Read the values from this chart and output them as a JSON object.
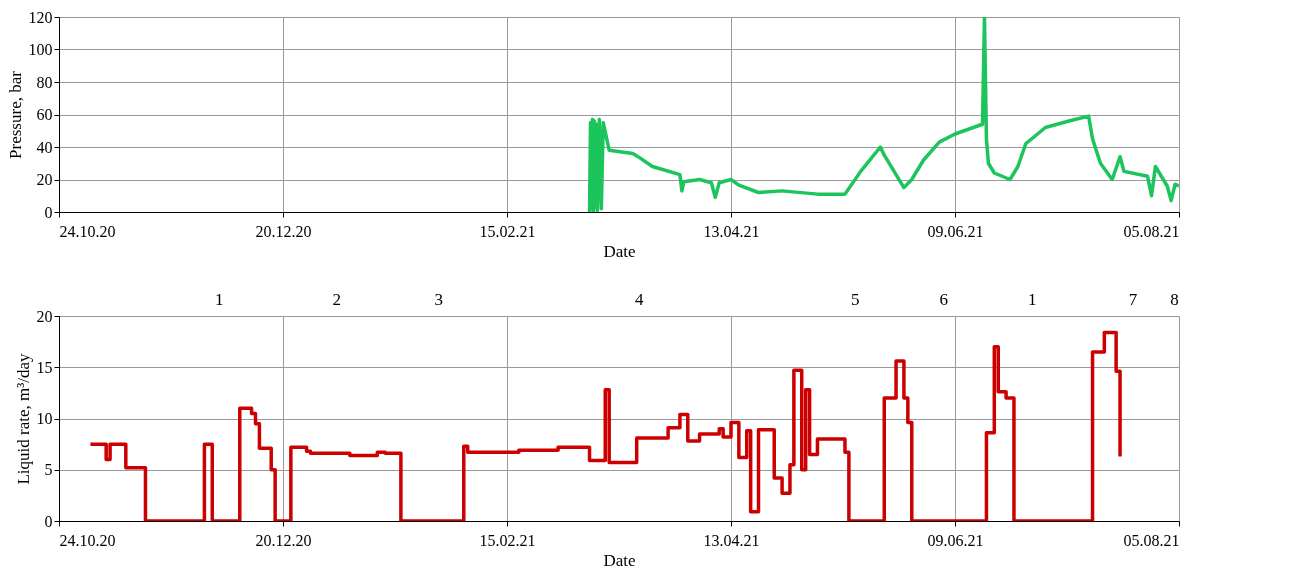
{
  "chart_data": [
    {
      "type": "line",
      "xlabel": "Date",
      "ylabel": "Pressure, bar",
      "xlim": [
        "2020-10-24",
        "2021-08-05"
      ],
      "xticks": [
        {
          "value": "2020-10-24",
          "label": "24.10.20"
        },
        {
          "value": "2020-12-20",
          "label": "20.12.20"
        },
        {
          "value": "2021-02-15",
          "label": "15.02.21"
        },
        {
          "value": "2021-04-13",
          "label": "13.04.21"
        },
        {
          "value": "2021-06-09",
          "label": "09.06.21"
        },
        {
          "value": "2021-08-05",
          "label": "05.08.21"
        }
      ],
      "ylim": [
        0,
        120
      ],
      "yticks": [
        0,
        20,
        40,
        60,
        80,
        100,
        120
      ],
      "grid": true,
      "series": [
        {
          "color": "#1cc45c",
          "x": [
            "2021-03-08T00:00",
            "2021-03-08T06:00",
            "2021-03-08T12:00",
            "2021-03-08T18:00",
            "2021-03-09T00:00",
            "2021-03-09T06:00",
            "2021-03-09T12:00",
            "2021-03-09T18:00",
            "2021-03-10T00:00",
            "2021-03-10T12:00",
            "2021-03-11T00:00",
            "2021-03-11T12:00",
            "2021-03-13",
            "2021-03-19",
            "2021-03-21",
            "2021-03-24",
            "2021-03-31",
            "2021-03-31T12:00",
            "2021-04-01",
            "2021-04-05",
            "2021-04-08",
            "2021-04-09",
            "2021-04-10",
            "2021-04-13",
            "2021-04-15",
            "2021-04-20",
            "2021-04-26",
            "2021-05-05",
            "2021-05-12",
            "2021-05-16",
            "2021-05-21",
            "2021-05-22",
            "2021-05-27",
            "2021-05-29",
            "2021-06-01",
            "2021-06-05",
            "2021-06-09",
            "2021-06-16",
            "2021-06-16T12:00",
            "2021-06-17",
            "2021-06-17T12:00",
            "2021-06-19",
            "2021-06-23",
            "2021-06-25",
            "2021-06-27",
            "2021-07-02",
            "2021-07-08",
            "2021-07-13",
            "2021-07-14",
            "2021-07-16",
            "2021-07-19",
            "2021-07-21",
            "2021-07-22",
            "2021-07-28",
            "2021-07-29",
            "2021-07-30",
            "2021-08-02",
            "2021-08-03",
            "2021-08-04",
            "2021-08-05"
          ],
          "values": [
            0,
            55,
            2,
            57,
            0,
            56,
            3,
            54,
            1,
            57,
            2,
            55,
            38,
            36,
            33,
            28,
            23,
            13,
            18.6,
            20,
            18,
            9,
            18,
            20,
            16.5,
            12,
            13,
            11,
            11,
            25,
            40,
            35,
            15,
            20,
            32,
            43,
            48,
            54,
            120,
            45,
            30,
            24,
            20,
            28,
            42,
            52,
            56,
            59,
            45,
            30,
            20,
            34,
            25,
            22,
            10,
            28,
            16,
            7,
            17,
            16
          ]
        }
      ]
    },
    {
      "type": "step",
      "xlabel": "Date",
      "ylabel": "Liquid rate, m³/day",
      "xlim": [
        "2020-10-24",
        "2021-08-05"
      ],
      "xticks": [
        {
          "value": "2020-10-24",
          "label": "24.10.20"
        },
        {
          "value": "2020-12-20",
          "label": "20.12.20"
        },
        {
          "value": "2021-02-15",
          "label": "15.02.21"
        },
        {
          "value": "2021-04-13",
          "label": "13.04.21"
        },
        {
          "value": "2021-06-09",
          "label": "09.06.21"
        },
        {
          "value": "2021-08-05",
          "label": "05.08.21"
        }
      ],
      "ylim": [
        0,
        20
      ],
      "yticks": [
        0,
        5,
        10,
        15,
        20
      ],
      "grid": true,
      "annotations": [
        "1",
        "2",
        "3",
        "4",
        "5",
        "6",
        "1",
        "7",
        "8"
      ],
      "series": [
        {
          "color": "#cc0000",
          "x": [
            "2020-11-01",
            "2020-11-05",
            "2020-11-06",
            "2020-11-10",
            "2020-11-15",
            "2020-11-30",
            "2020-12-02",
            "2020-12-09",
            "2020-12-12",
            "2020-12-13",
            "2020-12-14",
            "2020-12-17",
            "2020-12-18",
            "2020-12-22",
            "2020-12-26",
            "2020-12-27",
            "2021-01-06",
            "2021-01-13",
            "2021-01-15",
            "2021-01-19",
            "2021-02-04",
            "2021-02-05",
            "2021-02-18",
            "2021-02-28",
            "2021-03-08",
            "2021-03-12",
            "2021-03-13",
            "2021-03-20",
            "2021-03-28",
            "2021-03-31",
            "2021-04-02",
            "2021-04-05",
            "2021-04-10",
            "2021-04-11",
            "2021-04-13",
            "2021-04-15",
            "2021-04-17",
            "2021-04-18",
            "2021-04-20",
            "2021-04-24",
            "2021-04-26",
            "2021-04-28",
            "2021-04-29",
            "2021-05-01",
            "2021-05-02",
            "2021-05-03",
            "2021-05-05",
            "2021-05-12",
            "2021-05-13",
            "2021-05-22",
            "2021-05-25",
            "2021-05-27",
            "2021-05-28",
            "2021-05-29",
            "2021-06-17",
            "2021-06-19",
            "2021-06-20",
            "2021-06-22",
            "2021-06-24",
            "2021-07-14",
            "2021-07-17",
            "2021-07-20",
            "2021-07-21"
          ],
          "values": [
            7.5,
            6.0,
            7.5,
            5.2,
            0,
            7.5,
            0,
            11.0,
            10.5,
            9.5,
            7.1,
            5.0,
            0,
            7.2,
            6.8,
            6.6,
            6.4,
            6.7,
            6.6,
            0,
            7.3,
            6.7,
            6.9,
            7.2,
            5.9,
            12.8,
            5.7,
            8.1,
            9.1,
            10.4,
            7.8,
            8.5,
            9.0,
            8.2,
            9.6,
            6.2,
            8.8,
            0.9,
            8.9,
            4.2,
            2.7,
            5.5,
            14.7,
            5.0,
            12.8,
            6.5,
            8.0,
            6.7,
            0,
            12.0,
            15.6,
            12.0,
            9.6,
            0,
            8.6,
            17.0,
            12.6,
            12.0,
            0,
            16.5,
            18.4,
            14.6,
            6.3
          ]
        }
      ]
    }
  ]
}
